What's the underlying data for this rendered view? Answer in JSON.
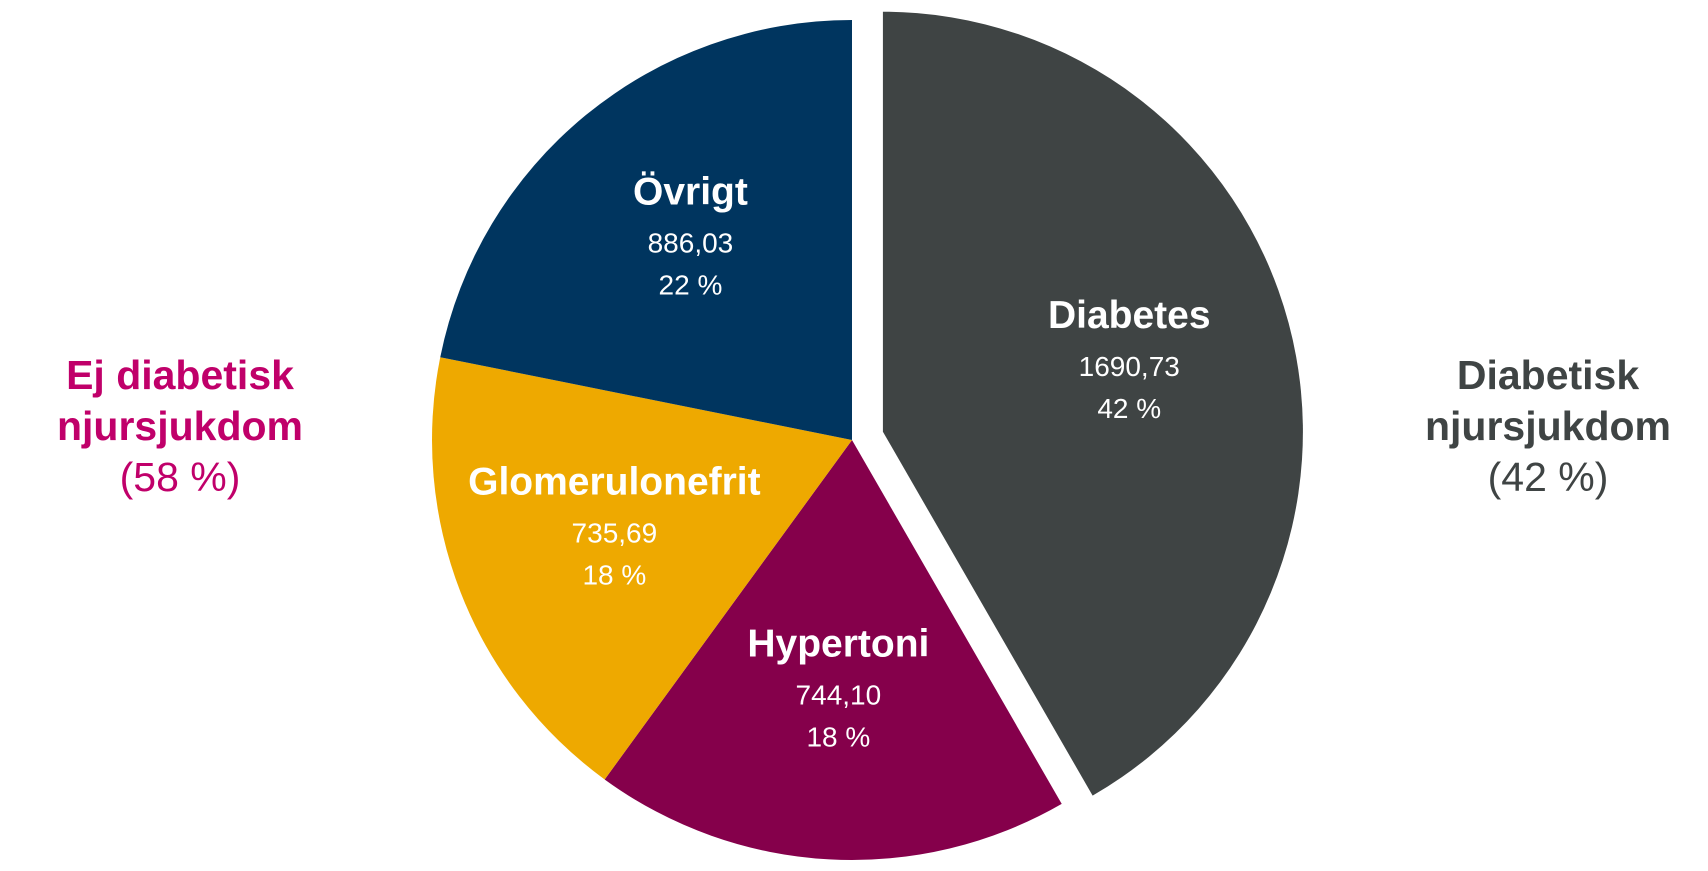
{
  "chart_data": {
    "type": "pie",
    "slices": [
      {
        "name": "Diabetes",
        "value": 1690.73,
        "value_label": "1690,73",
        "percent_label": "42 %",
        "color": "#3f4444",
        "exploded": true
      },
      {
        "name": "Hypertoni",
        "value": 744.1,
        "value_label": "744,10",
        "percent_label": "18 %",
        "color": "#85004b",
        "exploded": false
      },
      {
        "name": "Glomerulonefrit",
        "value": 735.69,
        "value_label": "735,69",
        "percent_label": "18 %",
        "color": "#eea900",
        "exploded": false
      },
      {
        "name": "Övrigt",
        "value": 886.03,
        "value_label": "886,03",
        "percent_label": "22 %",
        "color": "#00355f",
        "exploded": false
      }
    ],
    "groups": [
      {
        "title_line1": "Ej diabetisk",
        "title_line2": "njursjukdom",
        "percent": "(58 %)",
        "color": "#c0006a"
      },
      {
        "title_line1": "Diabetisk",
        "title_line2": "njursjukdom",
        "percent": "(42 %)",
        "color": "#3f4444"
      }
    ]
  }
}
